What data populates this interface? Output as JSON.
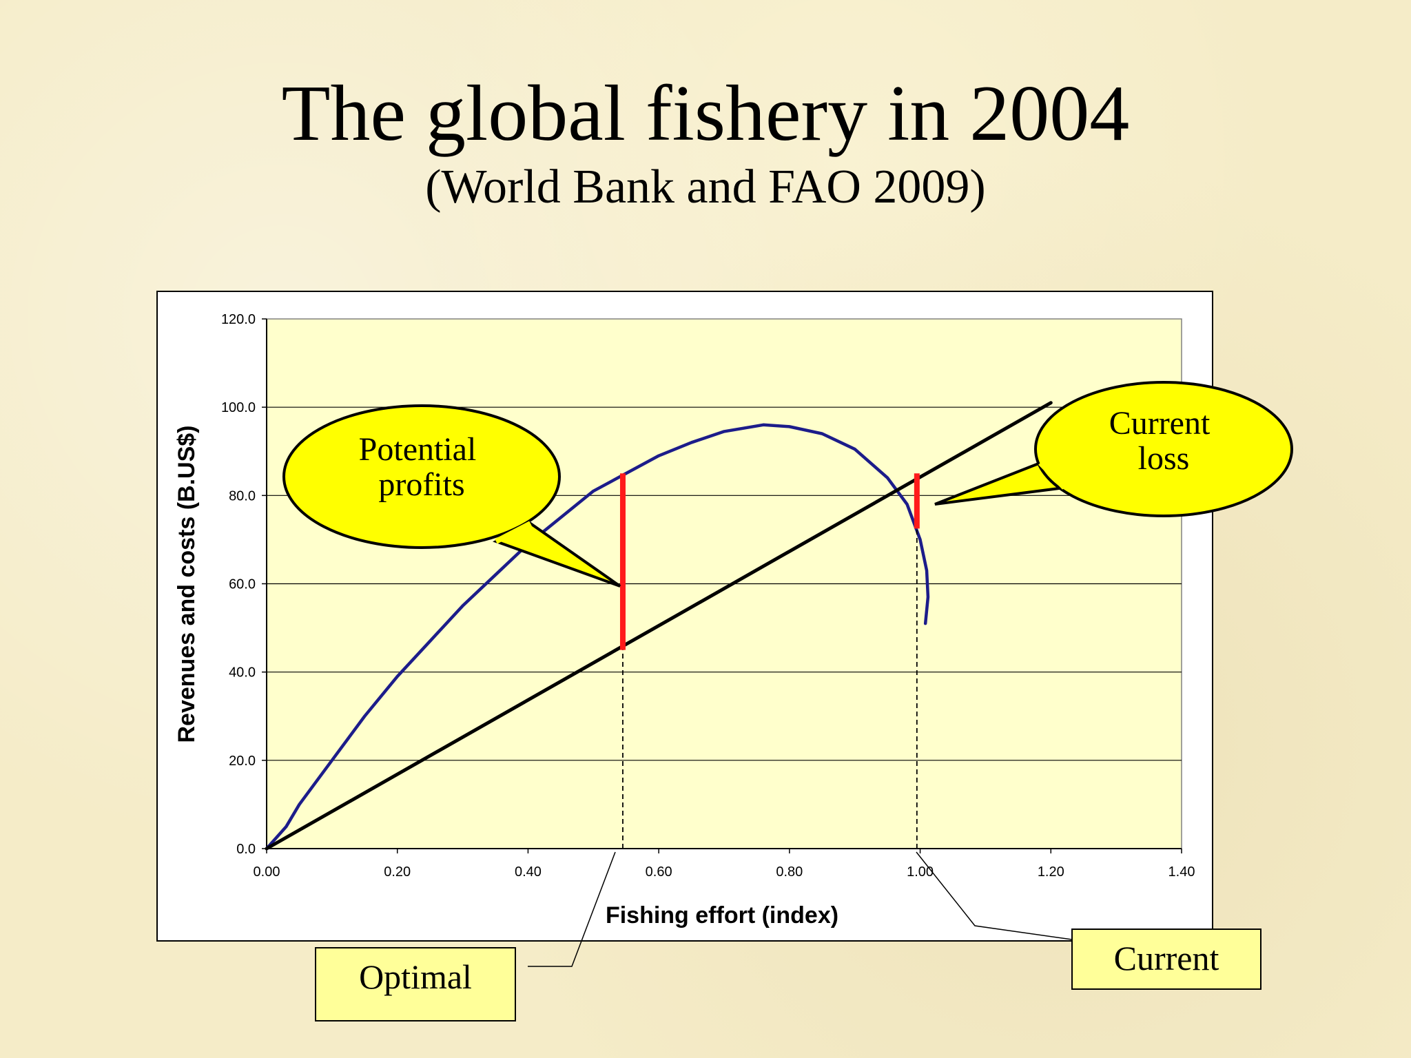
{
  "slide": {
    "title": "The global fishery in 2004",
    "subtitle": "(World Bank and FAO 2009)"
  },
  "chart_data": {
    "type": "line",
    "xlabel": "Fishing effort (index)",
    "ylabel": "Revenues and costs (B.US$)",
    "xlim": [
      0,
      1.4
    ],
    "ylim": [
      0,
      120
    ],
    "x_ticks": [
      "0.00",
      "0.20",
      "0.40",
      "0.60",
      "0.80",
      "1.00",
      "1.20",
      "1.40"
    ],
    "y_ticks": [
      "0.0",
      "20.0",
      "40.0",
      "60.0",
      "80.0",
      "100.0",
      "120.0"
    ],
    "grid": "horizontal",
    "series": [
      {
        "color": "#1c1c8a",
        "points": [
          [
            0.0,
            0
          ],
          [
            0.03,
            5
          ],
          [
            0.05,
            10
          ],
          [
            0.1,
            20
          ],
          [
            0.15,
            30
          ],
          [
            0.2,
            39
          ],
          [
            0.25,
            47
          ],
          [
            0.3,
            55
          ],
          [
            0.35,
            62
          ],
          [
            0.4,
            69
          ],
          [
            0.45,
            75
          ],
          [
            0.5,
            81
          ],
          [
            0.55,
            85
          ],
          [
            0.6,
            89
          ],
          [
            0.65,
            92
          ],
          [
            0.7,
            94.5
          ],
          [
            0.76,
            96
          ],
          [
            0.8,
            95.6
          ],
          [
            0.85,
            94
          ],
          [
            0.9,
            90.5
          ],
          [
            0.95,
            84
          ],
          [
            0.98,
            78
          ],
          [
            1.0,
            70
          ],
          [
            1.01,
            63
          ],
          [
            1.012,
            57
          ],
          [
            1.008,
            51
          ]
        ]
      },
      {
        "color": "#000000",
        "points": [
          [
            0.0,
            0
          ],
          [
            1.2,
            101
          ]
        ]
      }
    ],
    "annotations": [
      {
        "type": "bar",
        "x": 0.545,
        "y0": 45,
        "y1": 85,
        "color": "#ff1a1a"
      },
      {
        "type": "bar",
        "x": 0.995,
        "y0": 72.5,
        "y1": 85,
        "color": "#ff1a1a"
      },
      {
        "type": "vline",
        "x": 0.545,
        "y0": 0,
        "y1": 45,
        "style": "dashed"
      },
      {
        "type": "vline",
        "x": 0.995,
        "y0": 0,
        "y1": 72.5,
        "style": "dashed"
      }
    ],
    "callouts": [
      {
        "lines": [
          "Potential",
          "profits"
        ],
        "color": "#ffff00"
      },
      {
        "lines": [
          "Current",
          "loss"
        ],
        "color": "#ffff00"
      }
    ],
    "labels": [
      {
        "text": "Optimal",
        "color": "#ffff99"
      },
      {
        "text": "Current",
        "color": "#ffff99"
      }
    ],
    "colors": {
      "plot_bg": "#ffffcc",
      "frame_bg": "#ffffff"
    }
  }
}
